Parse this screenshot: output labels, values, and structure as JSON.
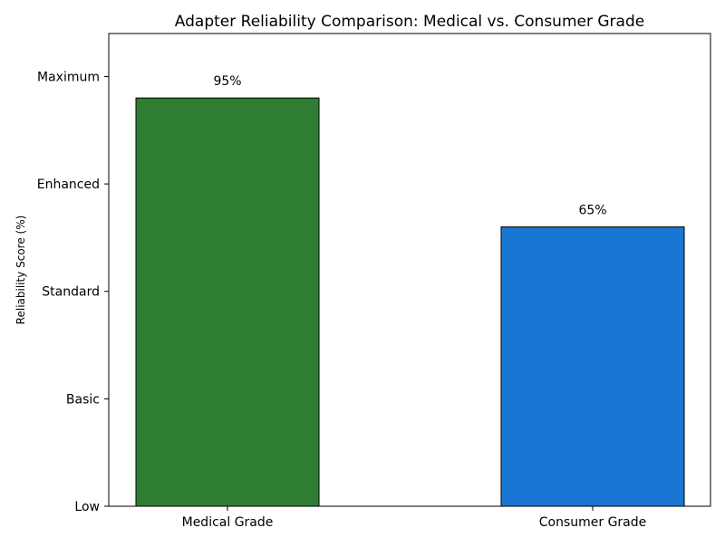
{
  "chart_data": {
    "type": "bar",
    "title": "Adapter Reliability Comparison: Medical vs. Consumer Grade",
    "xlabel": "",
    "ylabel": "Reliability Score (%)",
    "categories": [
      "Medical Grade",
      "Consumer Grade"
    ],
    "values": [
      95,
      65
    ],
    "data_labels": [
      "95%",
      "65%"
    ],
    "colors": [
      "#2e7d32",
      "#1976d2"
    ],
    "ylim": [
      0,
      110
    ],
    "yticks": [
      0,
      25,
      50,
      75,
      100
    ],
    "ytick_labels": [
      "Low",
      "Basic",
      "Standard",
      "Enhanced",
      "Maximum"
    ],
    "grid": false,
    "legend": "none"
  }
}
